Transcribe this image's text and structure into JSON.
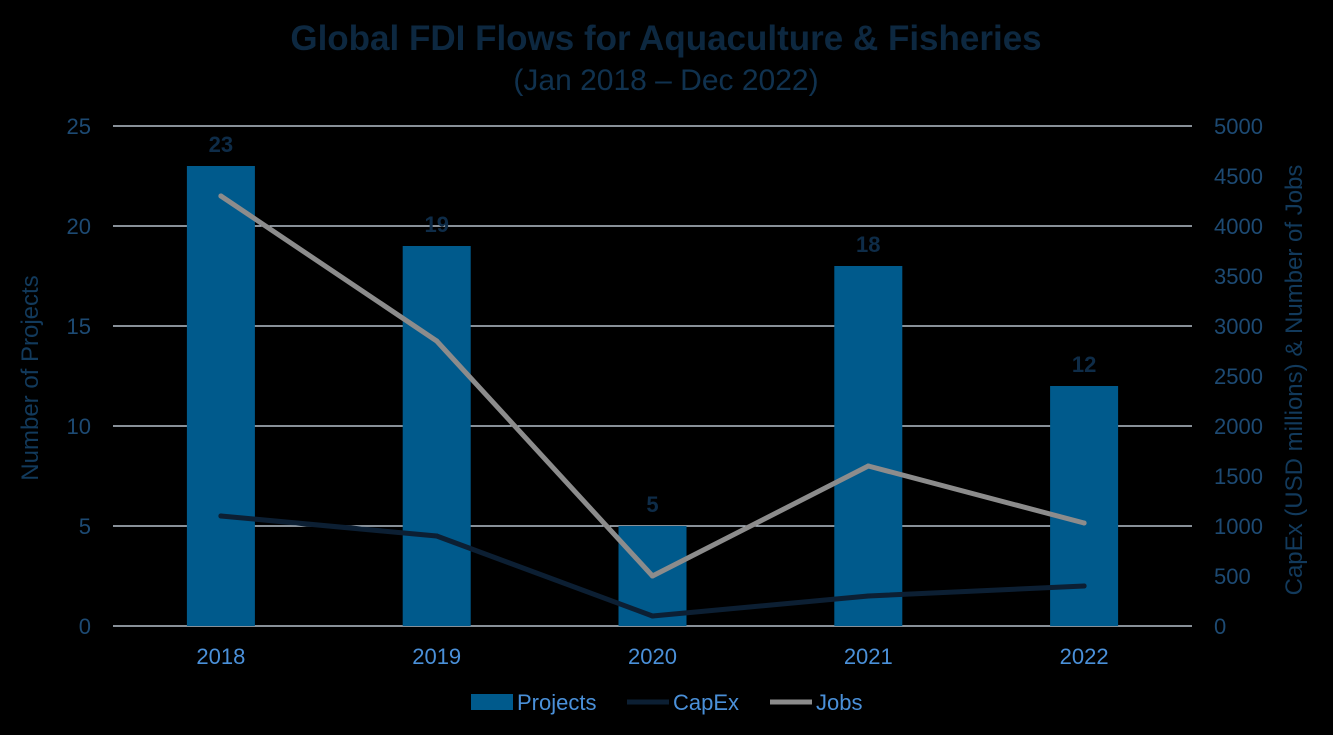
{
  "colors": {
    "background": "#000000",
    "title": "#0d2840",
    "subtitle": "#10324f",
    "axis_tick": "#1d4a73",
    "category_tick": "#4a90d9",
    "axis_title": "#123a5c",
    "grid": "#d9e6f2",
    "projects": "#005a8c",
    "capex": "#0c1f33",
    "jobs": "#8c8c8c",
    "data_label": "#0e2c48",
    "legend_text": "#4a90d9"
  },
  "chart_data": {
    "type": "bar",
    "title": "Global FDI Flows for Aquaculture & Fisheries",
    "subtitle": "(Jan 2018 – Dec 2022)",
    "categories": [
      "2018",
      "2019",
      "2020",
      "2021",
      "2022"
    ],
    "ylabel": "Number of Projects",
    "y2label": "CapEx (USD millions) & Number of Jobs",
    "ylim": [
      0,
      25
    ],
    "y2lim": [
      0,
      5000
    ],
    "yticks": [
      "0",
      "5",
      "10",
      "15",
      "20",
      "25"
    ],
    "y2ticks": [
      "0",
      "500",
      "1000",
      "1500",
      "2000",
      "2500",
      "3000",
      "3500",
      "4000",
      "4500",
      "5000"
    ],
    "grid": true,
    "legend_position": "bottom",
    "series": [
      {
        "name": "Projects",
        "type": "bar",
        "axis": "left",
        "values": [
          23,
          19,
          5,
          18,
          12
        ],
        "data_labels": [
          "23",
          "19",
          "5",
          "18",
          "12"
        ]
      },
      {
        "name": "CapEx",
        "type": "line",
        "axis": "right",
        "values": [
          1100,
          900,
          100,
          300,
          400
        ]
      },
      {
        "name": "Jobs",
        "type": "line",
        "axis": "right",
        "values": [
          4300,
          2850,
          500,
          1600,
          1030
        ]
      }
    ]
  }
}
